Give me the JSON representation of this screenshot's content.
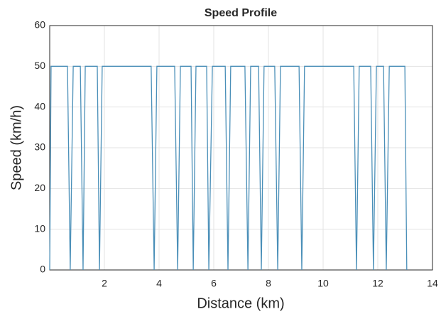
{
  "chart_data": {
    "type": "line",
    "title": "Speed Profile",
    "x_label": "Distance (km)",
    "y_label": "Speed (km/h)",
    "x": [
      0,
      0.05,
      0.65,
      0.75,
      0.86,
      1.12,
      1.22,
      1.3,
      1.74,
      1.82,
      1.92,
      3.71,
      3.82,
      3.92,
      4.57,
      4.68,
      4.78,
      5.17,
      5.25,
      5.35,
      5.74,
      5.82,
      5.95,
      6.42,
      6.52,
      6.62,
      7.14,
      7.25,
      7.35,
      7.64,
      7.74,
      7.84,
      8.23,
      8.34,
      8.44,
      9.12,
      9.22,
      9.32,
      11.12,
      11.22,
      11.32,
      11.74,
      11.84,
      11.95,
      12.21,
      12.31,
      12.42,
      12.99,
      13.06
    ],
    "values": [
      0,
      50,
      50,
      0,
      50,
      50,
      0,
      50,
      50,
      0,
      50,
      50,
      0,
      50,
      50,
      0,
      50,
      50,
      0,
      50,
      50,
      0,
      50,
      50,
      0,
      50,
      50,
      0,
      50,
      50,
      0,
      50,
      50,
      0,
      50,
      50,
      0,
      50,
      50,
      0,
      50,
      50,
      0,
      50,
      50,
      0,
      50,
      50,
      0
    ],
    "color": "#4a8fb8",
    "xlim": [
      0,
      14
    ],
    "xticks": [
      2,
      4,
      6,
      8,
      10,
      12,
      14
    ],
    "ylim": [
      0,
      60
    ],
    "yticks": [
      0,
      10,
      20,
      30,
      40,
      50,
      60
    ],
    "grid": true
  }
}
